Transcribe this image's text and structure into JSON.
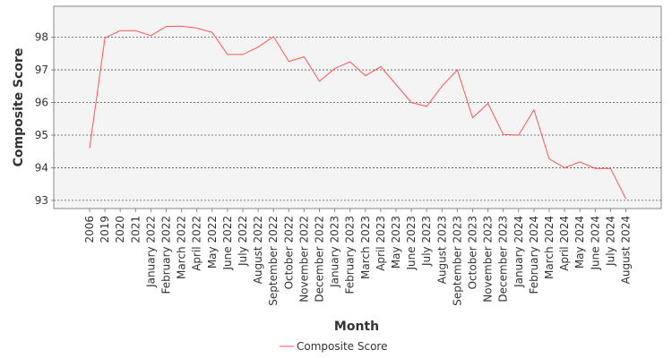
{
  "chart_data": {
    "type": "line",
    "xlabel": "Month",
    "ylabel": "Composite Score",
    "ylim": [
      92.75,
      98.95
    ],
    "yticks": [
      93,
      94,
      95,
      96,
      97,
      98
    ],
    "grid": true,
    "legend_position": "bottom-center",
    "categories": [
      "2006",
      "2019",
      "2020",
      "2021",
      "January 2022",
      "February 2022",
      "March 2022",
      "April 2022",
      "May 2022",
      "June 2022",
      "July 2022",
      "August 2022",
      "September 2022",
      "October 2022",
      "November 2022",
      "December 2022",
      "January 2023",
      "February 2023",
      "March 2023",
      "April 2023",
      "May 2023",
      "June 2023",
      "July 2023",
      "August 2023",
      "September 2023",
      "October 2023",
      "November 2023",
      "December 2023",
      "January 2024",
      "February 2024",
      "March 2024",
      "April 2024",
      "May 2024",
      "June 2024",
      "July 2024",
      "August 2024"
    ],
    "series": [
      {
        "name": "Composite Score",
        "color": "#ff5555",
        "values": [
          94.6,
          97.98,
          98.2,
          98.2,
          98.05,
          98.33,
          98.34,
          98.28,
          98.15,
          97.47,
          97.47,
          97.7,
          98.02,
          97.26,
          97.4,
          96.65,
          97.04,
          97.25,
          96.82,
          97.1,
          96.55,
          96.0,
          95.88,
          96.5,
          97.0,
          95.53,
          95.97,
          95.02,
          95.0,
          95.78,
          94.27,
          94.0,
          94.18,
          93.98,
          93.98,
          93.05
        ]
      }
    ]
  }
}
